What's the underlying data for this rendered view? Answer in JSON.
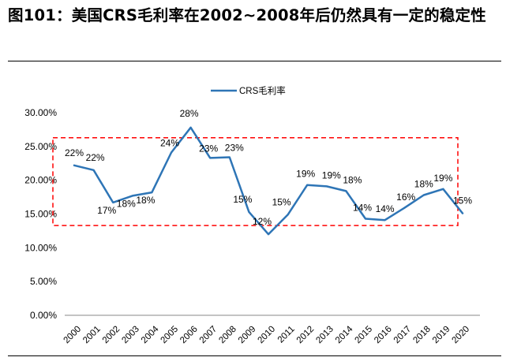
{
  "figure": {
    "title": "图101：美国CRS毛利率在2002~2008年后仍然具有一定的稳定性"
  },
  "chart_data": {
    "type": "line",
    "categories": [
      "2000",
      "2001",
      "2002",
      "2003",
      "2004",
      "2005",
      "2006",
      "2007",
      "2008",
      "2009",
      "2010",
      "2011",
      "2012",
      "2013",
      "2014",
      "2015",
      "2016",
      "2017",
      "2018",
      "2019",
      "2020"
    ],
    "series": [
      {
        "name": "CRS毛利率",
        "values": [
          22.2,
          21.5,
          16.7,
          17.7,
          18.2,
          24.1,
          27.8,
          23.3,
          23.4,
          15.3,
          12.0,
          14.9,
          19.3,
          19.1,
          18.4,
          14.3,
          14.1,
          15.9,
          17.8,
          18.7,
          15.1
        ],
        "data_labels": [
          "22%",
          "22%",
          "17%",
          "18%",
          "18%",
          "24%",
          "28%",
          "23%",
          "23%",
          "15%",
          "12%",
          "15%",
          "19%",
          "19%",
          "18%",
          "14%",
          "14%",
          "16%",
          "18%",
          "19%",
          "15%"
        ]
      }
    ],
    "ylim": [
      0,
      30
    ],
    "yticks": [
      0,
      5,
      10,
      15,
      20,
      25,
      30
    ],
    "ytick_labels": [
      "0.00%",
      "5.00%",
      "10.00%",
      "15.00%",
      "20.00%",
      "25.00%",
      "30.00%"
    ],
    "highlight_range": [
      13.3,
      26.3
    ],
    "legend_position": "top-center",
    "line_color": "#2E75B6",
    "highlight_color": "#FF0000",
    "grid": false
  }
}
